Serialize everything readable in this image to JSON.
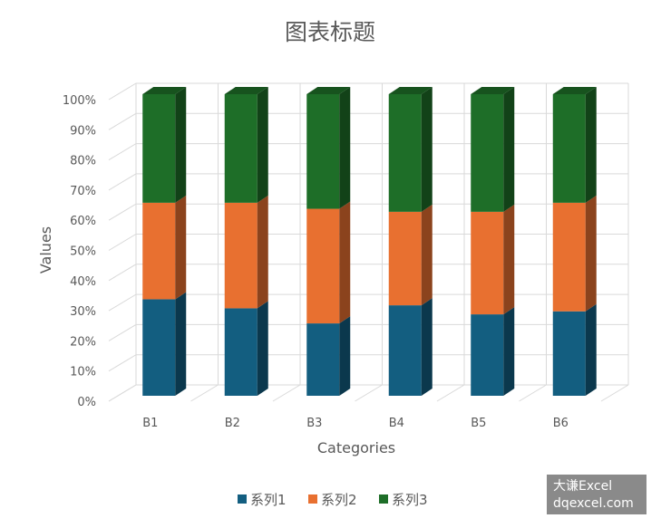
{
  "chart_data": {
    "type": "bar3d_stacked",
    "title": "图表标题",
    "x_label": "Categories",
    "y_label": "Values",
    "categories": [
      "B1",
      "B2",
      "B3",
      "B4",
      "B5",
      "B6"
    ],
    "series": [
      {
        "name": "系列1",
        "color": "#135e80",
        "values": [
          32,
          29,
          24,
          30,
          27,
          28
        ]
      },
      {
        "name": "系列2",
        "color": "#e87030",
        "values": [
          32,
          35,
          38,
          31,
          34,
          36
        ]
      },
      {
        "name": "系列3",
        "color": "#1e6e28",
        "values": [
          36,
          36,
          38,
          39,
          39,
          36
        ]
      }
    ],
    "ylim": [
      0,
      100
    ],
    "yticks": [
      {
        "value": 0,
        "label": "0%"
      },
      {
        "value": 10,
        "label": "10%"
      },
      {
        "value": 20,
        "label": "20%"
      },
      {
        "value": 30,
        "label": "30%"
      },
      {
        "value": 40,
        "label": "40%"
      },
      {
        "value": 50,
        "label": "50%"
      },
      {
        "value": 60,
        "label": "60%"
      },
      {
        "value": 70,
        "label": "70%"
      },
      {
        "value": 80,
        "label": "80%"
      },
      {
        "value": 90,
        "label": "90%"
      },
      {
        "value": 100,
        "label": "100%"
      }
    ],
    "grid": true,
    "legend": "bottom",
    "watermark": [
      "大谦Excel",
      "dqexcel.com"
    ]
  }
}
